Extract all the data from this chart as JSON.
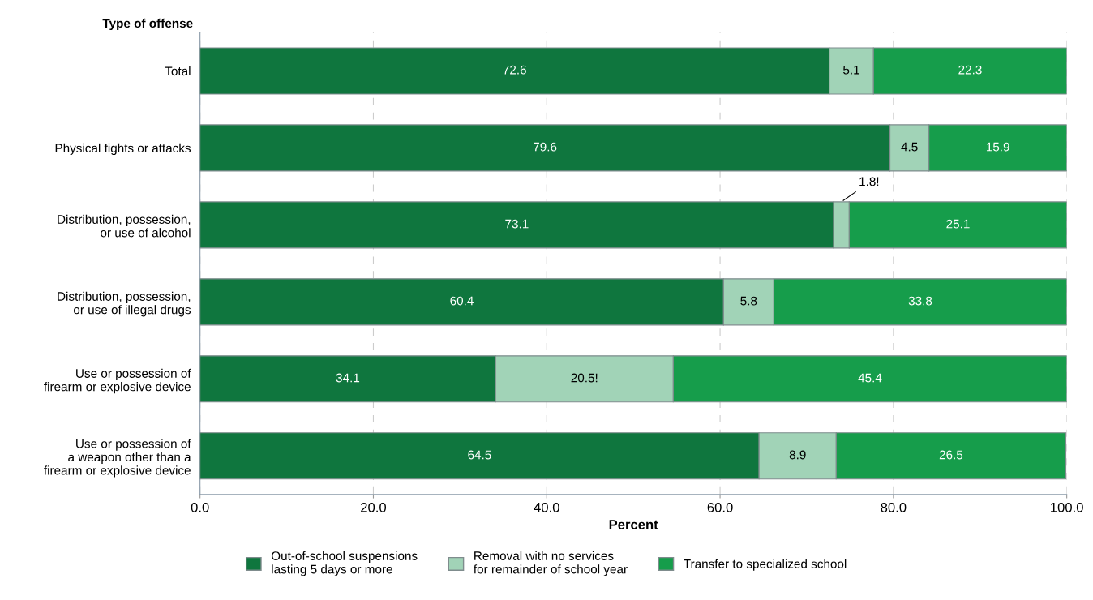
{
  "chart_data": {
    "type": "bar",
    "orientation": "horizontal",
    "stacked": true,
    "categories": [
      "Total",
      "Physical fights or attacks",
      "Distribution, possession,\nor use of alcohol",
      "Distribution, possession,\nor use of illegal drugs",
      "Use or possession of\nfirearm or explosive device",
      "Use or possession of\na weapon other than a\nfirearm or explosive device"
    ],
    "series": [
      {
        "name": "Out-of-school suspensions\nlasting 5 days or more",
        "color": "#0f763e",
        "values": [
          72.6,
          79.6,
          73.1,
          60.4,
          34.1,
          64.5
        ],
        "value_labels": [
          "72.6",
          "79.6",
          "73.1",
          "60.4",
          "34.1",
          "64.5"
        ]
      },
      {
        "name": "Removal with no services\nfor remainder of school year",
        "color": "#a1d3b7",
        "values": [
          5.1,
          4.5,
          1.8,
          5.8,
          20.5,
          8.9
        ],
        "value_labels": [
          "5.1",
          "4.5",
          "1.8!",
          "5.8",
          "20.5!",
          "8.9"
        ]
      },
      {
        "name": "Transfer to specialized school",
        "color": "#169d4b",
        "values": [
          22.3,
          15.9,
          25.1,
          33.8,
          45.4,
          26.5
        ],
        "value_labels": [
          "22.3",
          "15.9",
          "25.1",
          "33.8",
          "45.4",
          "26.5"
        ]
      }
    ],
    "xlabel": "Percent",
    "ylabel": "Type of offense",
    "xlim": [
      0,
      100
    ],
    "xticks": [
      {
        "value": 0,
        "label": "0.0"
      },
      {
        "value": 20,
        "label": "20.0"
      },
      {
        "value": 40,
        "label": "40.0"
      },
      {
        "value": 60,
        "label": "60.0"
      },
      {
        "value": 80,
        "label": "80.0"
      },
      {
        "value": 100,
        "label": "100.0"
      }
    ],
    "grid": "x",
    "legend": "bottom"
  }
}
